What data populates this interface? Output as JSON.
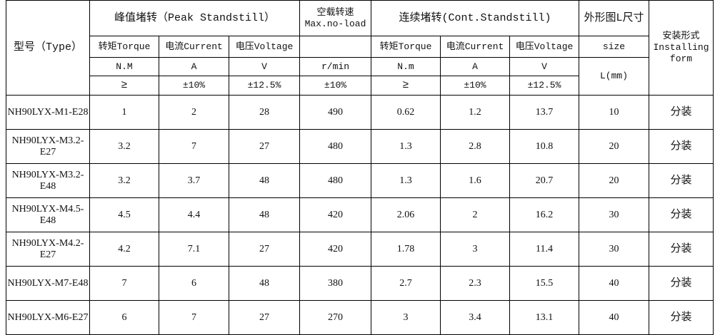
{
  "header": {
    "type": "型号（Type）",
    "peak": "峰值堵转（Peak Standstill）",
    "noload": "空载转速",
    "noload_en": "Max.no-load",
    "cont": "连续堵转(Cont.Standstill)",
    "size_title": "外形图L尺寸",
    "install": "安装形式",
    "install_en1": "Installing",
    "install_en2": "form",
    "torque": "转矩Torque",
    "current": "电流Current",
    "voltage": "电压Voltage",
    "size": "size",
    "unit_nm_peak": "N.M",
    "unit_a": "A",
    "unit_v": "V",
    "unit_rpm": "r/min",
    "unit_nm_cont": "N.m",
    "unit_l": "L(mm)",
    "tol_ge": "≥",
    "tol_10": "±10%",
    "tol_125": "±12.5%"
  },
  "rows": [
    {
      "model": "NH90LYX-M1-E28",
      "pt": "1",
      "pc": "2",
      "pv": "28",
      "n": "490",
      "ct": "0.62",
      "cc": "1.2",
      "cv": "13.7",
      "l": "10",
      "inst": "分装"
    },
    {
      "model": "NH90LYX-M3.2-E27",
      "pt": "3.2",
      "pc": "7",
      "pv": "27",
      "n": "480",
      "ct": "1.3",
      "cc": "2.8",
      "cv": "10.8",
      "l": "20",
      "inst": "分装"
    },
    {
      "model": "NH90LYX-M3.2-E48",
      "pt": "3.2",
      "pc": "3.7",
      "pv": "48",
      "n": "480",
      "ct": "1.3",
      "cc": "1.6",
      "cv": "20.7",
      "l": "20",
      "inst": "分装"
    },
    {
      "model": "NH90LYX-M4.5-E48",
      "pt": "4.5",
      "pc": "4.4",
      "pv": "48",
      "n": "420",
      "ct": "2.06",
      "cc": "2",
      "cv": "16.2",
      "l": "30",
      "inst": "分装"
    },
    {
      "model": "NH90LYX-M4.2-E27",
      "pt": "4.2",
      "pc": "7.1",
      "pv": "27",
      "n": "420",
      "ct": "1.78",
      "cc": "3",
      "cv": "11.4",
      "l": "30",
      "inst": "分装"
    },
    {
      "model": "NH90LYX-M7-E48",
      "pt": "7",
      "pc": "6",
      "pv": "48",
      "n": "380",
      "ct": "2.7",
      "cc": "2.3",
      "cv": "15.5",
      "l": "40",
      "inst": "分装"
    },
    {
      "model": "NH90LYX-M6-E27",
      "pt": "6",
      "pc": "7",
      "pv": "27",
      "n": "270",
      "ct": "3",
      "cc": "3.4",
      "cv": "13.1",
      "l": "40",
      "inst": "分装"
    }
  ]
}
